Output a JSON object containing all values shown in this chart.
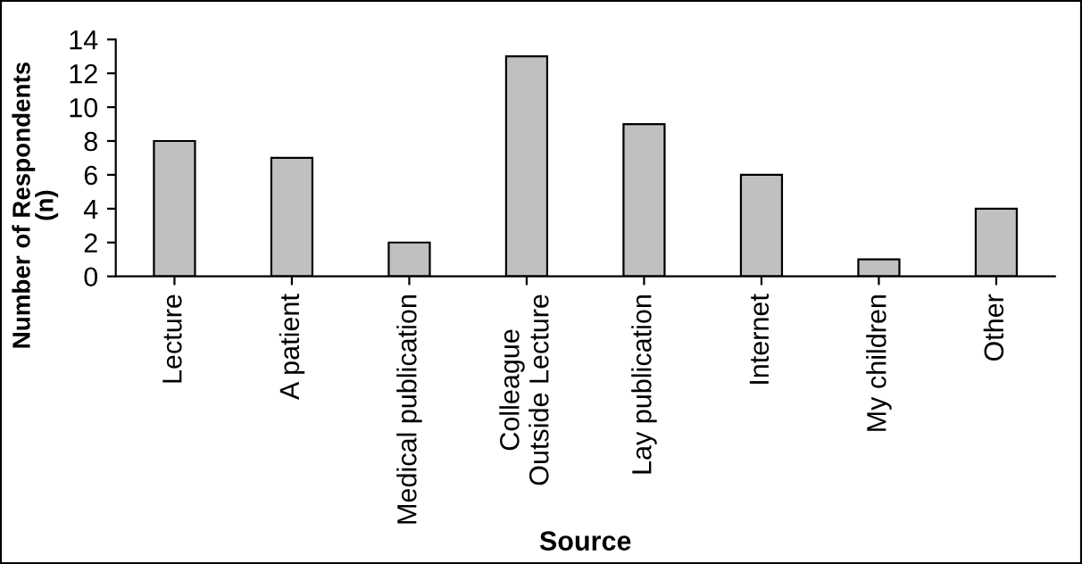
{
  "chart_data": {
    "type": "bar",
    "xlabel": "Source",
    "ylabel": "Number of Respondents\n(n)",
    "categories": [
      "Lecture",
      "A patient",
      "Medical publication",
      "Colleague\nOutside Lecture",
      "Lay publication",
      "Internet",
      "My children",
      "Other"
    ],
    "values": [
      8,
      7,
      2,
      13,
      9,
      6,
      1,
      4
    ],
    "color": "#c0c0c0",
    "ylim": [
      0,
      14
    ],
    "yticks": [
      0,
      2,
      4,
      6,
      8,
      10,
      12,
      14
    ],
    "grid": false,
    "legend": false
  }
}
